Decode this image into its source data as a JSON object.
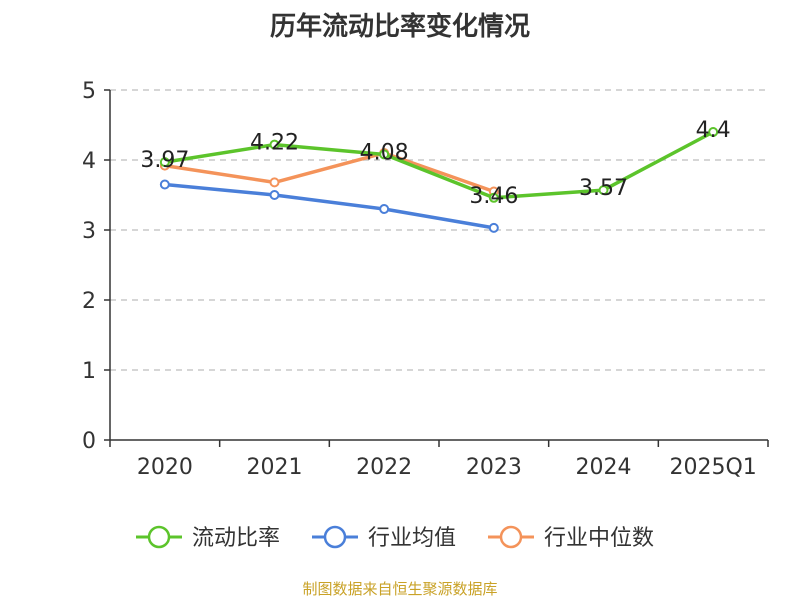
{
  "chart_data": {
    "type": "line",
    "title": "历年流动比率变化情况",
    "categories": [
      "2020",
      "2021",
      "2022",
      "2023",
      "2024",
      "2025Q1"
    ],
    "ylim": [
      0,
      5
    ],
    "yticks": [
      0,
      1,
      2,
      3,
      4,
      5
    ],
    "grid": true,
    "legend_position": "bottom",
    "series": [
      {
        "name": "流动比率",
        "color": "#5cc42b",
        "values": [
          3.97,
          4.22,
          4.08,
          3.46,
          3.57,
          4.4
        ],
        "labels": [
          "3.97",
          "4.22",
          "4.08",
          "3.46",
          "3.57",
          "4.4"
        ]
      },
      {
        "name": "行业均值",
        "color": "#4a7fd9",
        "values": [
          3.65,
          3.5,
          3.3,
          3.03,
          null,
          null
        ]
      },
      {
        "name": "行业中位数",
        "color": "#f4935a",
        "values": [
          3.92,
          3.68,
          4.1,
          3.55,
          null,
          null
        ]
      }
    ]
  },
  "source": "制图数据来自恒生聚源数据库"
}
